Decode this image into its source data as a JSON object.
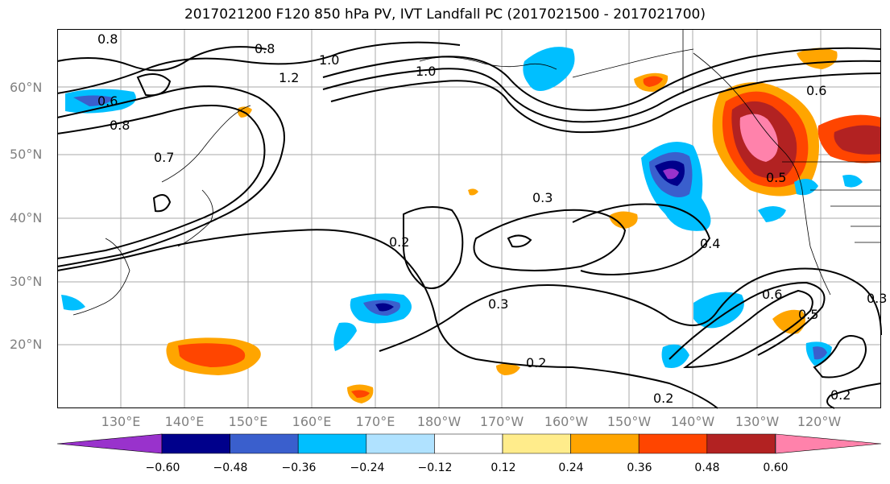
{
  "title": "2017021200 F120 850 hPa PV, IVT Landfall PC (2017021500 - 2017021700)",
  "lat_labels": [
    "60°N",
    "50°N",
    "40°N",
    "30°N",
    "20°N"
  ],
  "lon_labels": [
    "130°E",
    "140°E",
    "150°E",
    "160°E",
    "170°E",
    "180°W",
    "170°W",
    "160°W",
    "150°W",
    "140°W",
    "130°W",
    "120°W"
  ],
  "colorbar": {
    "colors": [
      "#9932CC",
      "#00008B",
      "#3A5FCD",
      "#00BFFF",
      "#B0E2FF",
      "#FFFFFF",
      "#FFEC8B",
      "#FFA500",
      "#FF4500",
      "#B22222",
      "#FF82AB"
    ],
    "ticks": [
      "−0.60",
      "−0.48",
      "−0.36",
      "−0.24",
      "−0.12",
      "0.12",
      "0.24",
      "0.36",
      "0.48",
      "0.60"
    ]
  },
  "contour_labels": [
    "0.8",
    "0.8",
    "1.0",
    "1.2",
    "1.0",
    "0.6",
    "0.8",
    "0.7",
    "0.3",
    "0.2",
    "0.3",
    "0.2",
    "0.2",
    "0.4",
    "0.6",
    "0.5",
    "0.3",
    "0.2",
    "0.5",
    "0.6"
  ]
}
